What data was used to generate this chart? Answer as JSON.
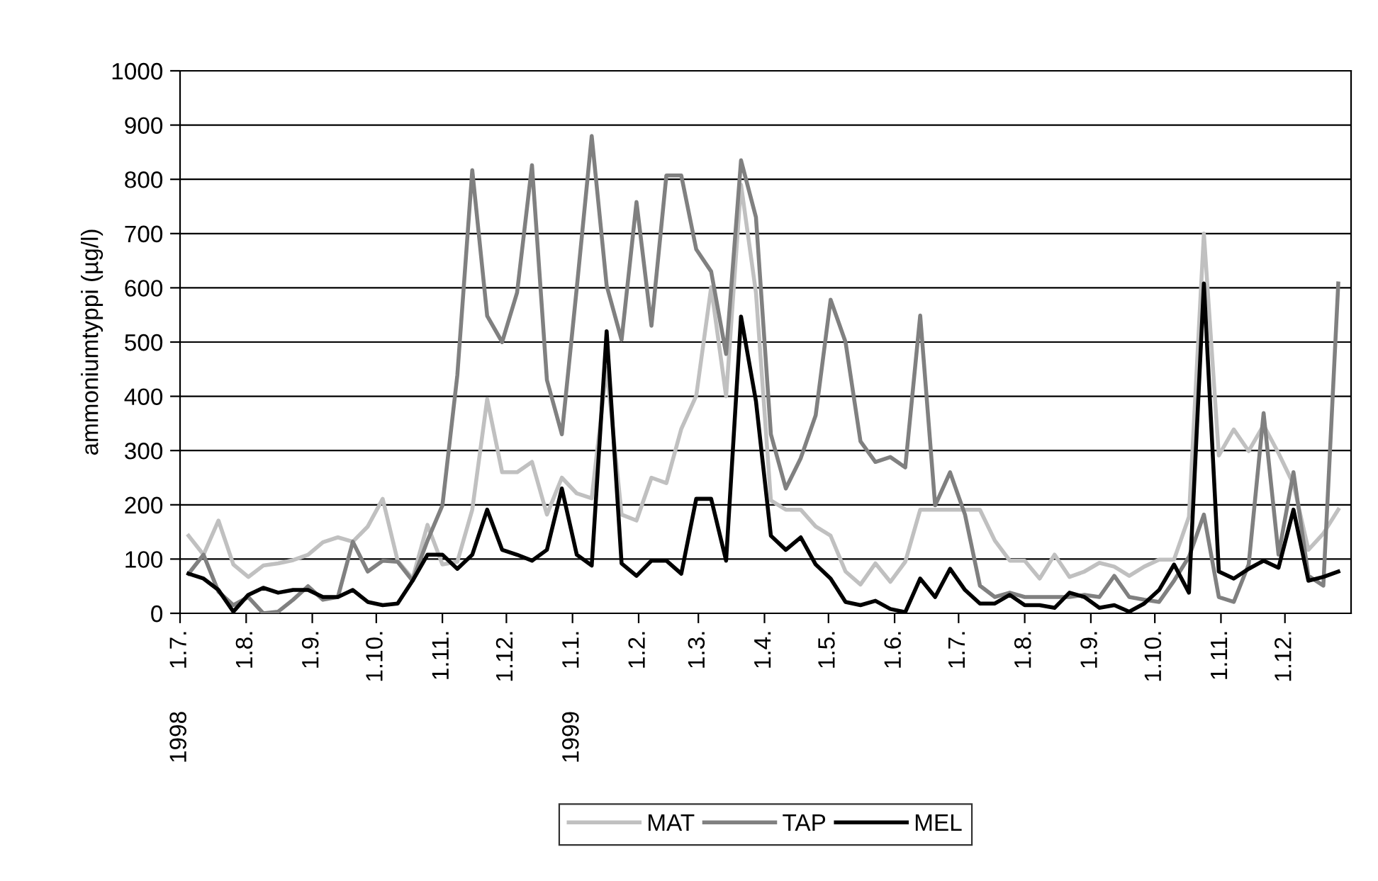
{
  "chart_data": {
    "type": "line",
    "ylabel": "ammoniumtyppi (µg/l)",
    "x": [
      "1998-07-05",
      "1998-07-12",
      "1998-07-19",
      "1998-07-26",
      "1998-08-02",
      "1998-08-09",
      "1998-08-16",
      "1998-08-23",
      "1998-08-30",
      "1998-09-06",
      "1998-09-13",
      "1998-09-20",
      "1998-09-27",
      "1998-10-04",
      "1998-10-11",
      "1998-10-18",
      "1998-10-25",
      "1998-11-01",
      "1998-11-08",
      "1998-11-15",
      "1998-11-22",
      "1998-11-29",
      "1998-12-06",
      "1998-12-13",
      "1998-12-20",
      "1998-12-27",
      "1999-01-03",
      "1999-01-10",
      "1999-01-17",
      "1999-01-24",
      "1999-01-31",
      "1999-02-07",
      "1999-02-14",
      "1999-02-21",
      "1999-02-28",
      "1999-03-07",
      "1999-03-14",
      "1999-03-21",
      "1999-03-28",
      "1999-04-04",
      "1999-04-11",
      "1999-04-18",
      "1999-04-25",
      "1999-05-02",
      "1999-05-09",
      "1999-05-16",
      "1999-05-23",
      "1999-05-30",
      "1999-06-06",
      "1999-06-13",
      "1999-06-20",
      "1999-06-27",
      "1999-07-04",
      "1999-07-11",
      "1999-07-18",
      "1999-07-25",
      "1999-08-01",
      "1999-08-08",
      "1999-08-15",
      "1999-08-22",
      "1999-08-29",
      "1999-09-05",
      "1999-09-12",
      "1999-09-19",
      "1999-09-26",
      "1999-10-03",
      "1999-10-10",
      "1999-10-17",
      "1999-10-24",
      "1999-10-31",
      "1999-11-07",
      "1999-11-14",
      "1999-11-21",
      "1999-11-28",
      "1999-12-05",
      "1999-12-12",
      "1999-12-19",
      "1999-12-26"
    ],
    "series": [
      {
        "name": "MAT",
        "color": "#c0c0c0",
        "values": [
          143,
          108,
          171,
          90,
          67,
          88,
          92,
          98,
          108,
          131,
          140,
          132,
          160,
          211,
          97,
          64,
          163,
          90,
          95,
          191,
          395,
          260,
          260,
          279,
          182,
          250,
          221,
          212,
          452,
          182,
          171,
          250,
          240,
          340,
          401,
          601,
          400,
          790,
          591,
          208,
          191,
          191,
          160,
          143,
          77,
          53,
          92,
          58,
          95,
          191,
          191,
          191,
          191,
          191,
          134,
          97,
          97,
          64,
          108,
          67,
          77,
          93,
          86,
          69,
          86,
          99,
          99,
          178,
          700,
          291,
          339,
          299,
          347,
          295,
          238,
          117,
          147,
          191
        ]
      },
      {
        "name": "TAP",
        "color": "#808080",
        "values": [
          73,
          108,
          40,
          15,
          30,
          0,
          3,
          25,
          50,
          25,
          30,
          132,
          77,
          97,
          95,
          60,
          134,
          199,
          439,
          817,
          548,
          500,
          591,
          826,
          430,
          330,
          600,
          880,
          604,
          504,
          758,
          530,
          807,
          807,
          671,
          630,
          478,
          835,
          730,
          330,
          230,
          286,
          365,
          578,
          500,
          317,
          279,
          288,
          269,
          549,
          199,
          260,
          182,
          51,
          30,
          38,
          30,
          30,
          30,
          30,
          34,
          30,
          69,
          30,
          25,
          21,
          60,
          104,
          182,
          30,
          21,
          90,
          369,
          108,
          260,
          69,
          51,
          608
        ]
      },
      {
        "name": "MEL",
        "color": "#000000",
        "values": [
          73,
          64,
          43,
          3,
          34,
          47,
          38,
          43,
          43,
          30,
          30,
          43,
          21,
          15,
          18,
          60,
          108,
          108,
          82,
          108,
          191,
          117,
          108,
          97,
          117,
          230,
          108,
          88,
          520,
          92,
          69,
          97,
          97,
          73,
          211,
          211,
          97,
          547,
          391,
          143,
          117,
          140,
          90,
          64,
          21,
          15,
          23,
          8,
          2,
          64,
          30,
          82,
          43,
          18,
          18,
          34,
          15,
          15,
          10,
          38,
          30,
          10,
          15,
          3,
          18,
          43,
          90,
          38,
          608,
          77,
          64,
          82,
          97,
          84,
          191,
          60,
          67,
          77
        ]
      }
    ],
    "xlim": [
      "1998-07-01",
      "2000-01-01"
    ],
    "xticks": [
      {
        "value": "1998-07-01",
        "label": "1.7."
      },
      {
        "value": "1998-08-01",
        "label": "1.8."
      },
      {
        "value": "1998-09-01",
        "label": "1.9."
      },
      {
        "value": "1998-10-01",
        "label": "1.10."
      },
      {
        "value": "1998-11-01",
        "label": "1.11."
      },
      {
        "value": "1998-12-01",
        "label": "1.12."
      },
      {
        "value": "1999-01-01",
        "label": "1.1."
      },
      {
        "value": "1999-02-01",
        "label": "1.2."
      },
      {
        "value": "1999-03-01",
        "label": "1.3."
      },
      {
        "value": "1999-04-01",
        "label": "1.4."
      },
      {
        "value": "1999-05-01",
        "label": "1.5."
      },
      {
        "value": "1999-06-01",
        "label": "1.6."
      },
      {
        "value": "1999-07-01",
        "label": "1.7."
      },
      {
        "value": "1999-08-01",
        "label": "1.8."
      },
      {
        "value": "1999-09-01",
        "label": "1.9."
      },
      {
        "value": "1999-10-01",
        "label": "1.10."
      },
      {
        "value": "1999-11-01",
        "label": "1.11."
      },
      {
        "value": "1999-12-01",
        "label": "1.12."
      }
    ],
    "ylim": [
      0,
      1000
    ],
    "yticks": [
      0,
      100,
      200,
      300,
      400,
      500,
      600,
      700,
      800,
      900,
      1000
    ],
    "annotations": [
      "1998",
      "1999"
    ],
    "grid": "y",
    "legend": "bottom",
    "marker": "none",
    "line_style": "solid"
  }
}
